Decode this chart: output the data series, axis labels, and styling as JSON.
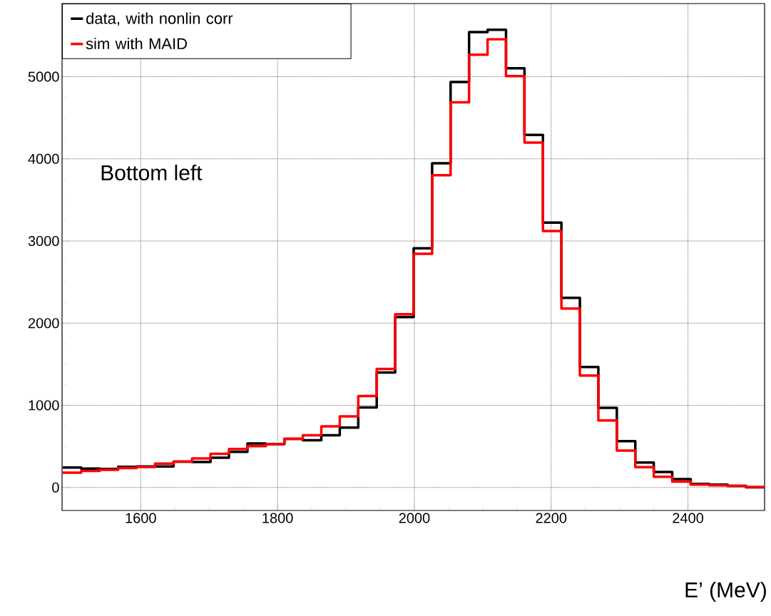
{
  "chart_data": {
    "type": "histogram",
    "xlabel": "E’ (MeV)",
    "annotations": [
      "Bottom left"
    ],
    "bins": [
      1486,
      1513,
      1540,
      1567,
      1594,
      1621,
      1648,
      1675,
      1702,
      1729,
      1756,
      1783,
      1810,
      1837,
      1864,
      1891,
      1918,
      1945,
      1972,
      1999,
      2026,
      2053,
      2080,
      2107,
      2134,
      2161,
      2188,
      2215,
      2242,
      2269,
      2296,
      2323,
      2350,
      2377,
      2404,
      2431,
      2458,
      2485,
      2512
    ],
    "series": [
      {
        "name": "data, with nonlin corr",
        "color": "#000000",
        "values": [
          243,
          230,
          225,
          251,
          255,
          255,
          315,
          309,
          361,
          434,
          535,
          526,
          593,
          575,
          636,
          729,
          974,
          1399,
          2073,
          2911,
          3946,
          4935,
          5542,
          5571,
          5102,
          4290,
          3224,
          2307,
          1466,
          969,
          564,
          304,
          188,
          101,
          43,
          35,
          20,
          0
        ]
      },
      {
        "name": "sim with MAID",
        "color": "#ff0000",
        "values": [
          180,
          202,
          214,
          237,
          250,
          290,
          315,
          353,
          410,
          468,
          503,
          526,
          593,
          636,
          743,
          865,
          1113,
          1442,
          2108,
          2845,
          3801,
          4689,
          5267,
          5455,
          5007,
          4198,
          3122,
          2177,
          1362,
          815,
          448,
          246,
          130,
          72,
          35,
          26,
          20,
          6
        ]
      }
    ],
    "xlim": [
      1485,
      2512
    ],
    "ylim": [
      -280,
      5890
    ],
    "xticks": [
      1600,
      1800,
      2000,
      2200,
      2400
    ],
    "yticks": [
      0,
      1000,
      2000,
      3000,
      4000,
      5000
    ],
    "grid": true,
    "legend": "top left",
    "line_style": "solid"
  }
}
